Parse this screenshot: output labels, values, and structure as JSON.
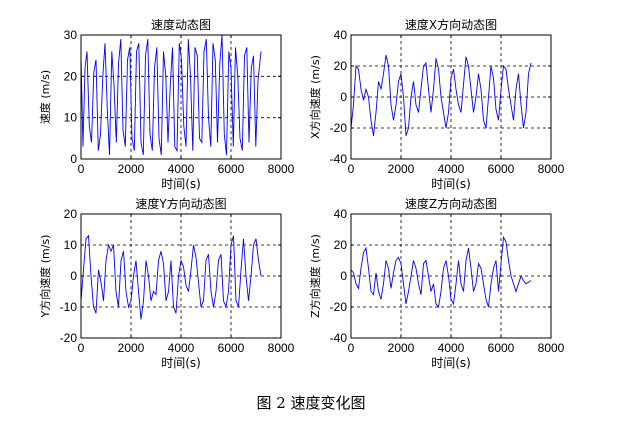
{
  "caption": "图 2  速度变化图",
  "chart_data": [
    {
      "type": "line",
      "title": "速度动态图",
      "xlabel": "时间(s)",
      "ylabel": "速度 (m/s)",
      "xlim": [
        0,
        8000
      ],
      "ylim": [
        0,
        30
      ],
      "xticks": [
        0,
        2000,
        4000,
        6000,
        8000
      ],
      "yticks": [
        0,
        10,
        20,
        30
      ],
      "grid": "dashed",
      "color": "#0000ff",
      "series": [
        {
          "x": [
            0,
            80,
            160,
            240,
            330,
            420,
            510,
            600,
            690,
            780,
            870,
            960,
            1050,
            1140,
            1230,
            1320,
            1410,
            1500,
            1590,
            1680,
            1770,
            1860,
            1950,
            2040,
            2130,
            2220,
            2310,
            2400,
            2490,
            2580,
            2670,
            2760,
            2850,
            2940,
            3030,
            3120,
            3210,
            3300,
            3390,
            3480,
            3570,
            3660,
            3750,
            3840,
            3930,
            4020,
            4110,
            4200,
            4290,
            4380,
            4470,
            4560,
            4650,
            4740,
            4830,
            4920,
            5010,
            5100,
            5190,
            5280,
            5370,
            5460,
            5550,
            5640,
            5730,
            5820,
            5910,
            6000,
            6090,
            6180,
            6270,
            6360,
            6450,
            6540,
            6630,
            6720,
            6810,
            6900,
            6990,
            7080,
            7200
          ],
          "y": [
            25,
            3,
            22,
            26,
            8,
            4,
            21,
            24,
            2,
            6,
            20,
            28,
            12,
            1,
            26,
            18,
            4,
            23,
            29,
            7,
            3,
            24,
            27,
            5,
            2,
            26,
            28,
            4,
            1,
            25,
            29,
            6,
            2,
            22,
            27,
            5,
            1,
            26,
            20,
            4,
            18,
            27,
            3,
            2,
            28,
            24,
            8,
            3,
            29,
            20,
            2,
            27,
            25,
            5,
            4,
            26,
            29,
            10,
            3,
            28,
            24,
            4,
            23,
            30,
            6,
            1,
            26,
            22,
            3,
            27,
            20,
            5,
            2,
            25,
            27,
            4,
            22,
            25,
            3,
            19,
            26
          ]
        }
      ]
    },
    {
      "type": "line",
      "title": "速度X方向动态图",
      "xlabel": "时间(s)",
      "ylabel": "X方向速度 (m/s)",
      "xlim": [
        0,
        8000
      ],
      "ylim": [
        -40,
        40
      ],
      "xticks": [
        0,
        2000,
        4000,
        6000,
        8000
      ],
      "yticks": [
        -40,
        -20,
        0,
        20,
        40
      ],
      "grid": "dashed",
      "color": "#0000ff",
      "series": [
        {
          "x": [
            0,
            100,
            200,
            300,
            400,
            500,
            600,
            700,
            800,
            900,
            1000,
            1100,
            1200,
            1300,
            1400,
            1500,
            1600,
            1700,
            1800,
            1900,
            2000,
            2100,
            2200,
            2300,
            2400,
            2500,
            2600,
            2700,
            2800,
            2900,
            3000,
            3100,
            3200,
            3300,
            3400,
            3500,
            3600,
            3700,
            3800,
            3900,
            4000,
            4100,
            4200,
            4300,
            4400,
            4500,
            4600,
            4700,
            4800,
            4900,
            5000,
            5100,
            5200,
            5300,
            5400,
            5500,
            5600,
            5700,
            5800,
            5900,
            6000,
            6100,
            6200,
            6300,
            6400,
            6500,
            6600,
            6700,
            6800,
            6900,
            7000,
            7100,
            7200
          ],
          "y": [
            -20,
            -5,
            20,
            18,
            5,
            -2,
            5,
            0,
            -15,
            -25,
            -10,
            10,
            5,
            15,
            27,
            20,
            -5,
            -15,
            -5,
            10,
            15,
            0,
            -25,
            -20,
            0,
            10,
            -5,
            -10,
            5,
            20,
            22,
            5,
            -10,
            5,
            25,
            18,
            0,
            -10,
            -20,
            -10,
            12,
            18,
            5,
            -5,
            -10,
            8,
            26,
            20,
            5,
            -10,
            0,
            15,
            5,
            -15,
            -20,
            0,
            20,
            12,
            -8,
            -15,
            5,
            20,
            18,
            5,
            -5,
            -15,
            5,
            15,
            -5,
            -20,
            -10,
            15,
            22
          ]
        }
      ]
    },
    {
      "type": "line",
      "title": "速度Y方向动态图",
      "xlabel": "时间(s)",
      "ylabel": "Y方向速度 (m/s)",
      "xlim": [
        0,
        8000
      ],
      "ylim": [
        -20,
        20
      ],
      "xticks": [
        0,
        2000,
        4000,
        6000,
        8000
      ],
      "yticks": [
        -20,
        -10,
        0,
        10,
        20
      ],
      "grid": "dashed",
      "color": "#0000ff",
      "series": [
        {
          "x": [
            0,
            100,
            200,
            300,
            400,
            500,
            600,
            700,
            800,
            900,
            1000,
            1100,
            1200,
            1300,
            1400,
            1500,
            1600,
            1700,
            1800,
            1900,
            2000,
            2100,
            2200,
            2300,
            2400,
            2500,
            2600,
            2700,
            2800,
            2900,
            3000,
            3100,
            3200,
            3300,
            3400,
            3500,
            3600,
            3700,
            3800,
            3900,
            4000,
            4100,
            4200,
            4300,
            4400,
            4500,
            4600,
            4700,
            4800,
            4900,
            5000,
            5100,
            5200,
            5300,
            5400,
            5500,
            5600,
            5700,
            5800,
            5900,
            6000,
            6100,
            6200,
            6300,
            6400,
            6500,
            6600,
            6700,
            6800,
            6900,
            7000,
            7100,
            7200
          ],
          "y": [
            -8,
            2,
            12,
            13,
            0,
            -10,
            -12,
            2,
            -2,
            -8,
            5,
            10,
            8,
            10,
            -5,
            -10,
            5,
            8,
            -5,
            -10,
            -8,
            0,
            5,
            -5,
            -14,
            -8,
            5,
            0,
            -8,
            -5,
            -6,
            5,
            8,
            4,
            -8,
            -5,
            5,
            -10,
            -12,
            0,
            5,
            3,
            -3,
            -5,
            2,
            10,
            6,
            -2,
            -10,
            -8,
            5,
            7,
            -5,
            -10,
            -5,
            5,
            7,
            -8,
            -10,
            -5,
            10,
            13,
            -8,
            -10,
            2,
            12,
            0,
            -8,
            0,
            10,
            12,
            5,
            0
          ]
        }
      ]
    },
    {
      "type": "line",
      "title": "速度Z方向动态图",
      "xlabel": "时间(s)",
      "ylabel": "Z方向速度 (m/s)",
      "xlim": [
        0,
        8000
      ],
      "ylim": [
        -40,
        40
      ],
      "xticks": [
        0,
        2000,
        4000,
        6000,
        8000
      ],
      "yticks": [
        -40,
        -20,
        0,
        20,
        40
      ],
      "grid": "dashed",
      "color": "#0000ff",
      "series": [
        {
          "x": [
            0,
            100,
            200,
            300,
            400,
            500,
            600,
            700,
            800,
            900,
            1000,
            1100,
            1200,
            1300,
            1400,
            1500,
            1600,
            1700,
            1800,
            1900,
            2000,
            2100,
            2200,
            2300,
            2400,
            2500,
            2600,
            2700,
            2800,
            2900,
            3000,
            3100,
            3200,
            3300,
            3400,
            3500,
            3600,
            3700,
            3800,
            3900,
            4000,
            4100,
            4200,
            4300,
            4400,
            4500,
            4600,
            4700,
            4800,
            4900,
            5000,
            5100,
            5200,
            5300,
            5400,
            5500,
            5600,
            5700,
            5800,
            5900,
            6000,
            6100,
            6200,
            6300,
            6400,
            6500,
            6600,
            6700,
            6800,
            6900,
            7000,
            7100,
            7200
          ],
          "y": [
            4,
            2,
            -5,
            -8,
            5,
            15,
            18,
            5,
            -10,
            -12,
            2,
            -10,
            -15,
            -5,
            10,
            5,
            -8,
            2,
            10,
            12,
            8,
            -5,
            -18,
            -10,
            0,
            10,
            5,
            -5,
            -12,
            8,
            10,
            0,
            -10,
            -5,
            -18,
            -20,
            -10,
            5,
            10,
            0,
            -15,
            -18,
            -5,
            10,
            -5,
            -10,
            10,
            18,
            5,
            -10,
            -5,
            8,
            5,
            -5,
            -15,
            -20,
            -5,
            5,
            10,
            -10,
            8,
            25,
            22,
            10,
            0,
            -5,
            -10,
            -5,
            0,
            -3,
            -5,
            -4,
            -3
          ]
        }
      ]
    }
  ]
}
